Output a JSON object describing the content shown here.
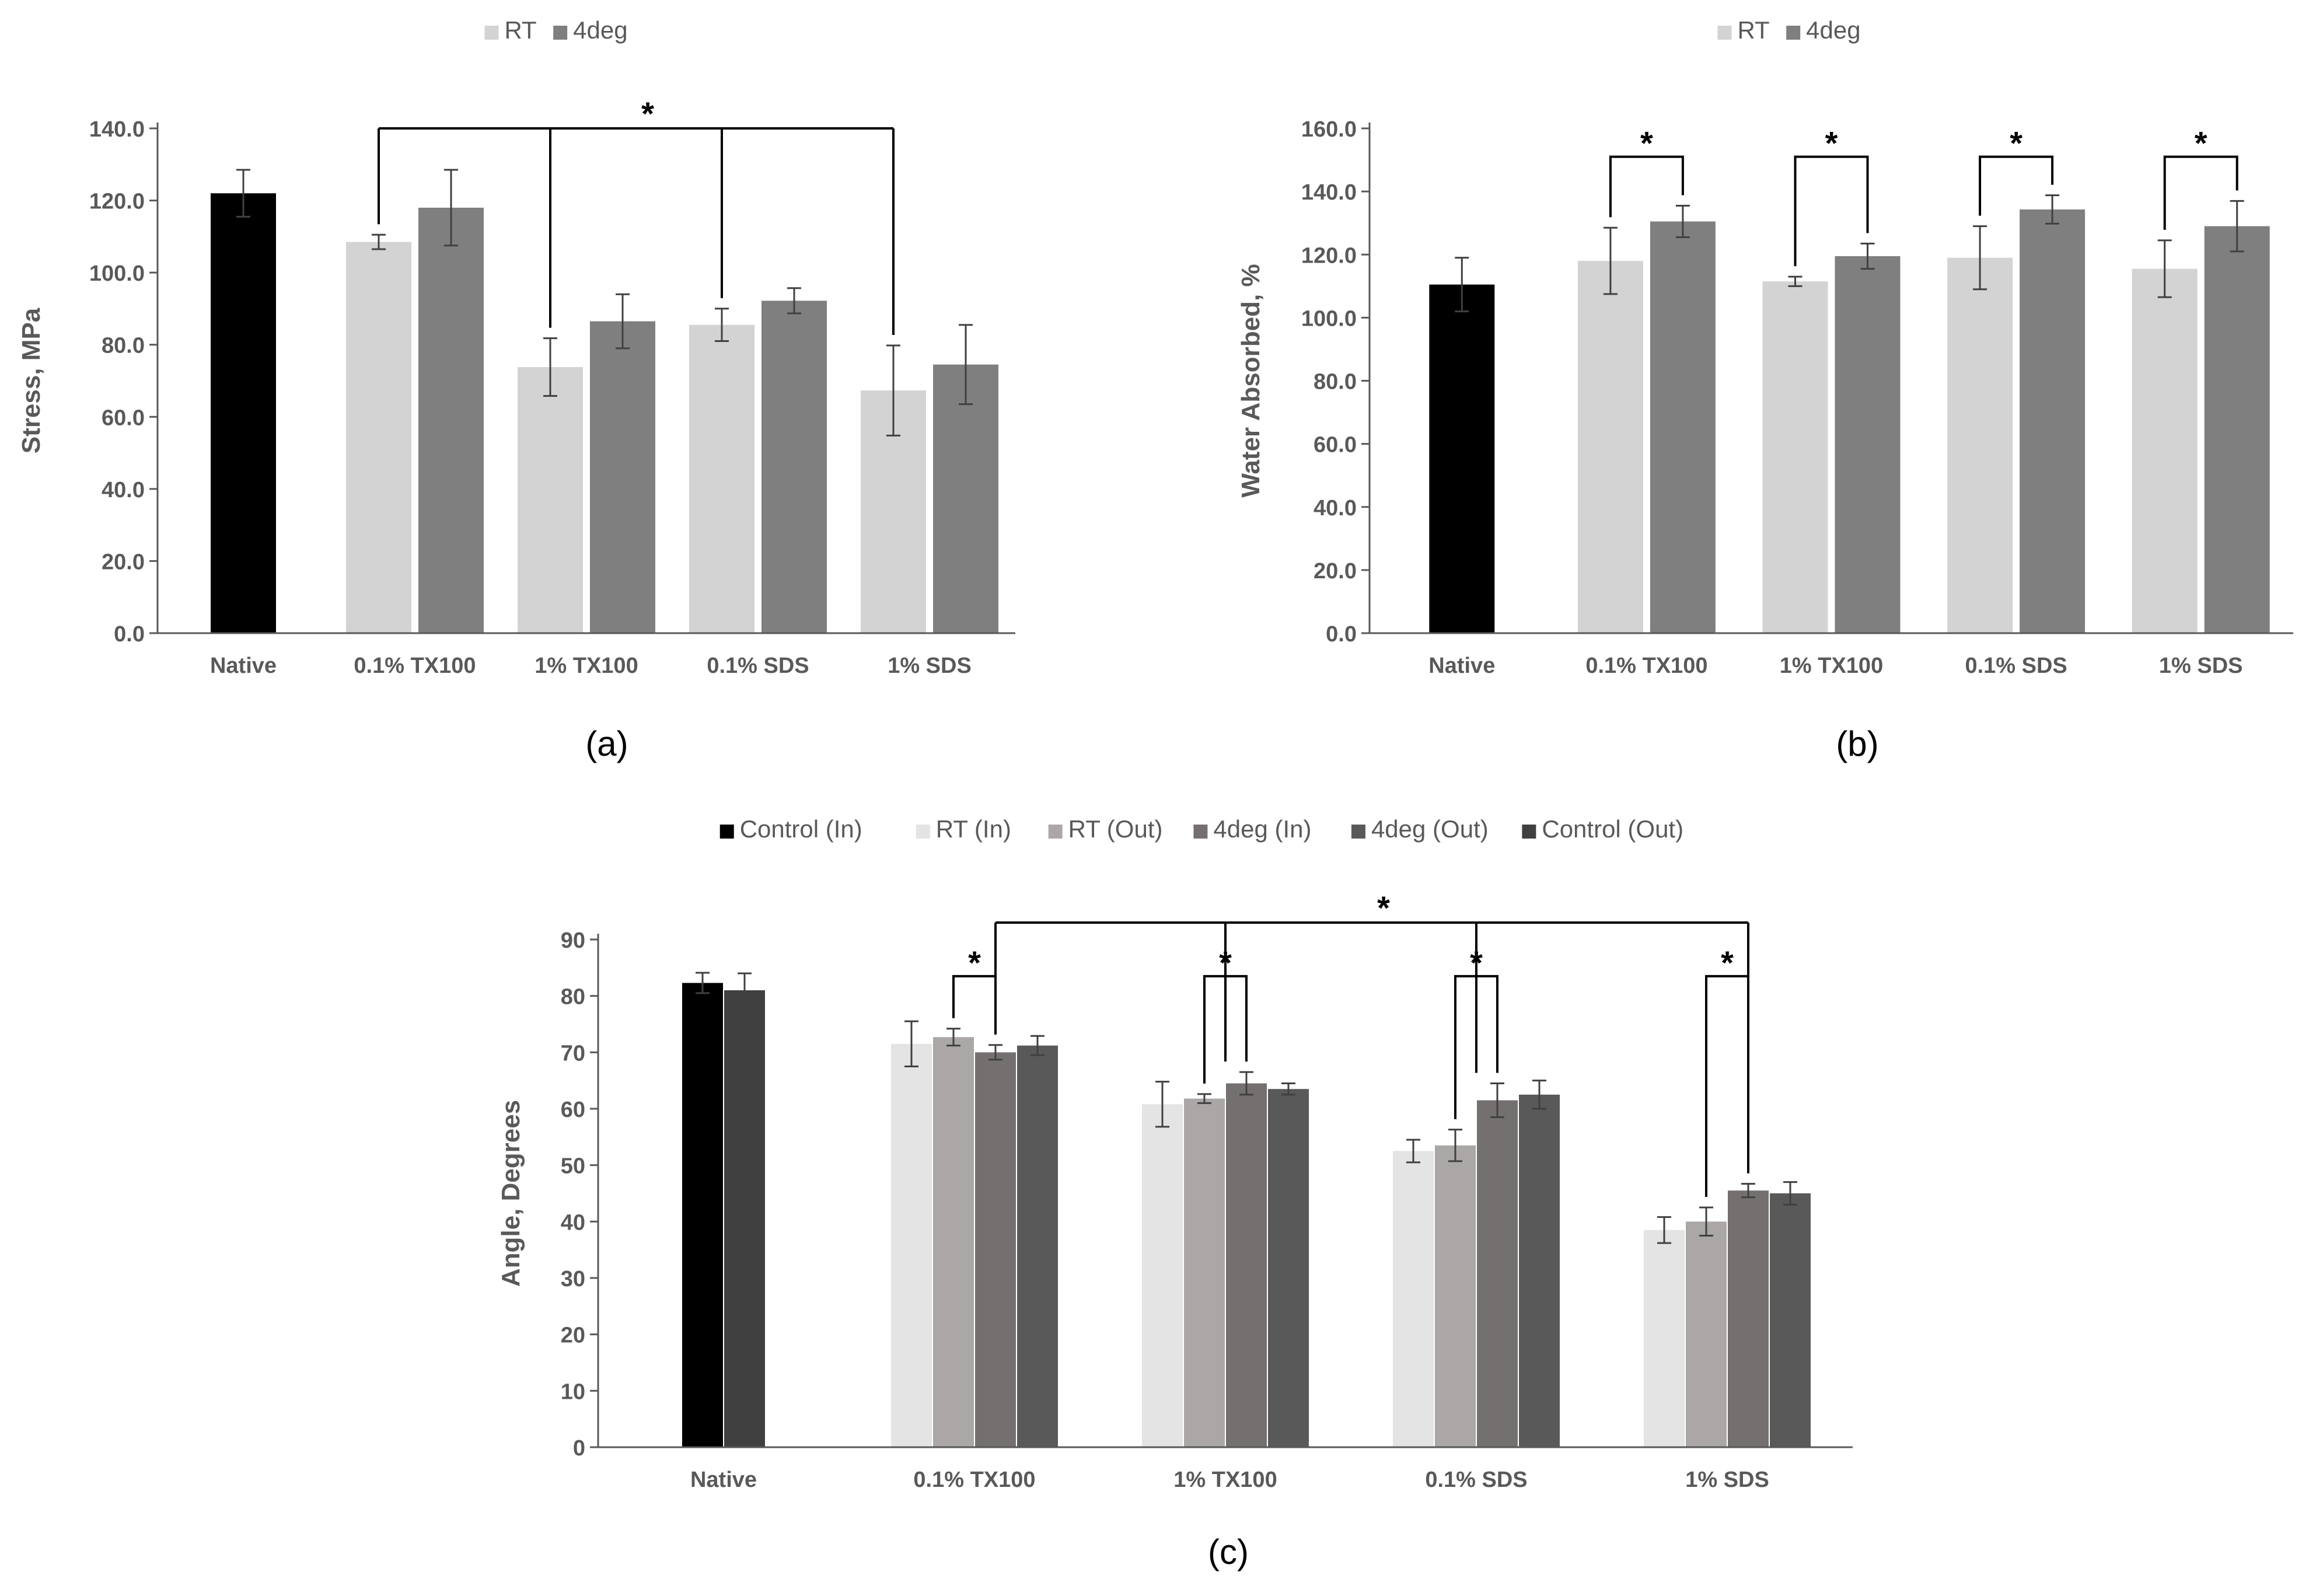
{
  "colors": {
    "axis": "#595959",
    "bracket": "#000000",
    "errorbar": "#404040"
  },
  "chart_data": [
    {
      "id": "a",
      "type": "bar",
      "panel_label": "(a)",
      "ylabel": "Stress, MPa",
      "xlabel": "",
      "ylim": [
        0,
        140
      ],
      "ytick_step": 20,
      "ytick_decimals": 1,
      "grid": false,
      "legend_position": "top",
      "categories": [
        "Native",
        "0.1% TX100",
        "1% TX100",
        "0.1% SDS",
        "1% SDS"
      ],
      "series": [
        {
          "name": "",
          "color": "#000000",
          "legend": false,
          "values": [
            122,
            null,
            null,
            null,
            null
          ],
          "errors": [
            6.5,
            null,
            null,
            null,
            null
          ]
        },
        {
          "name": "RT",
          "color": "#d3d3d3",
          "legend": true,
          "values": [
            null,
            108.5,
            73.8,
            85.5,
            67.3
          ],
          "errors": [
            null,
            2.0,
            8.0,
            4.5,
            12.5
          ]
        },
        {
          "name": "4deg",
          "color": "#7f7f7f",
          "legend": true,
          "values": [
            null,
            118,
            86.5,
            92.2,
            74.5
          ],
          "errors": [
            null,
            10.5,
            7.5,
            3.5,
            11.0
          ]
        }
      ],
      "brackets": [
        {
          "label": "*",
          "y": 140,
          "from": [
            1,
            1
          ],
          "to": [
            [
              2,
              1
            ],
            [
              3,
              1
            ],
            [
              4,
              1
            ]
          ],
          "drops_from_mid": true
        }
      ]
    },
    {
      "id": "b",
      "type": "bar",
      "panel_label": "(b)",
      "ylabel": "Water Absorbed, %",
      "xlabel": "",
      "ylim": [
        0,
        160
      ],
      "ytick_step": 20,
      "ytick_decimals": 1,
      "grid": false,
      "legend_position": "top",
      "categories": [
        "Native",
        "0.1% TX100",
        "1% TX100",
        "0.1% SDS",
        "1% SDS"
      ],
      "series": [
        {
          "name": "",
          "color": "#000000",
          "legend": false,
          "values": [
            110.5,
            null,
            null,
            null,
            null
          ],
          "errors": [
            8.5,
            null,
            null,
            null,
            null
          ]
        },
        {
          "name": "RT",
          "color": "#d3d3d3",
          "legend": true,
          "values": [
            null,
            118,
            111.5,
            119,
            115.5
          ],
          "errors": [
            null,
            10.5,
            1.5,
            10.0,
            9.0
          ]
        },
        {
          "name": "4deg",
          "color": "#7f7f7f",
          "legend": true,
          "values": [
            null,
            130.5,
            119.5,
            134.3,
            129
          ],
          "errors": [
            null,
            5.0,
            4.0,
            4.5,
            8.0
          ]
        }
      ],
      "brackets": [
        {
          "label": "*",
          "y": 151,
          "pair": [
            [
              1,
              1
            ],
            [
              1,
              2
            ]
          ]
        },
        {
          "label": "*",
          "y": 151,
          "pair": [
            [
              2,
              1
            ],
            [
              2,
              2
            ]
          ]
        },
        {
          "label": "*",
          "y": 151,
          "pair": [
            [
              3,
              1
            ],
            [
              3,
              2
            ]
          ]
        },
        {
          "label": "*",
          "y": 151,
          "pair": [
            [
              4,
              1
            ],
            [
              4,
              2
            ]
          ]
        }
      ]
    },
    {
      "id": "c",
      "type": "bar",
      "panel_label": "(c)",
      "ylabel": "Angle, Degrees",
      "xlabel": "",
      "ylim": [
        0,
        90
      ],
      "ytick_step": 10,
      "ytick_decimals": 0,
      "grid": false,
      "legend_position": "top",
      "categories": [
        "Native",
        "0.1% TX100",
        "1% TX100",
        "0.1% SDS",
        "1% SDS"
      ],
      "series": [
        {
          "name": "Control (In)",
          "color": "#000000",
          "legend": true,
          "values": [
            82.3,
            null,
            null,
            null,
            null
          ],
          "errors": [
            1.8,
            null,
            null,
            null,
            null
          ]
        },
        {
          "name": "RT (In)",
          "color": "#e4e4e4",
          "legend": true,
          "values": [
            null,
            71.5,
            60.8,
            52.5,
            38.5
          ],
          "errors": [
            null,
            4.0,
            4.0,
            2.0,
            2.3
          ]
        },
        {
          "name": "RT (Out)",
          "color": "#aba7a7",
          "legend": true,
          "values": [
            null,
            72.7,
            61.8,
            53.5,
            40.0
          ],
          "errors": [
            null,
            1.5,
            0.8,
            2.8,
            2.5
          ]
        },
        {
          "name": "4deg (In)",
          "color": "#757070",
          "legend": true,
          "values": [
            null,
            70.0,
            64.5,
            61.5,
            45.5
          ],
          "errors": [
            null,
            1.3,
            2.0,
            3.0,
            1.2
          ]
        },
        {
          "name": "4deg (Out)",
          "color": "#595959",
          "legend": true,
          "values": [
            null,
            71.2,
            63.5,
            62.5,
            45.0
          ],
          "errors": [
            null,
            1.7,
            1.0,
            2.5,
            2.0
          ]
        },
        {
          "name": "Control (Out)",
          "color": "#404040",
          "legend": true,
          "values": [
            81.0,
            null,
            null,
            null,
            null
          ],
          "errors": [
            3.0,
            null,
            null,
            null,
            null
          ]
        }
      ],
      "brackets": [
        {
          "label": "*",
          "y": 93,
          "from": [
            1,
            3
          ],
          "to": [
            [
              2,
              3
            ],
            [
              3,
              3
            ],
            [
              4,
              3
            ]
          ],
          "drops_from_mid": true
        },
        {
          "label": "*",
          "y": 83.5,
          "pair": [
            [
              1,
              2
            ],
            [
              1,
              3
            ]
          ]
        },
        {
          "label": "*",
          "y": 83.5,
          "pair": [
            [
              2,
              2
            ],
            [
              2,
              3
            ]
          ]
        },
        {
          "label": "*",
          "y": 83.5,
          "pair": [
            [
              3,
              2
            ],
            [
              3,
              3
            ]
          ]
        },
        {
          "label": "*",
          "y": 83.5,
          "pair": [
            [
              4,
              2
            ],
            [
              4,
              3
            ]
          ]
        }
      ]
    }
  ]
}
